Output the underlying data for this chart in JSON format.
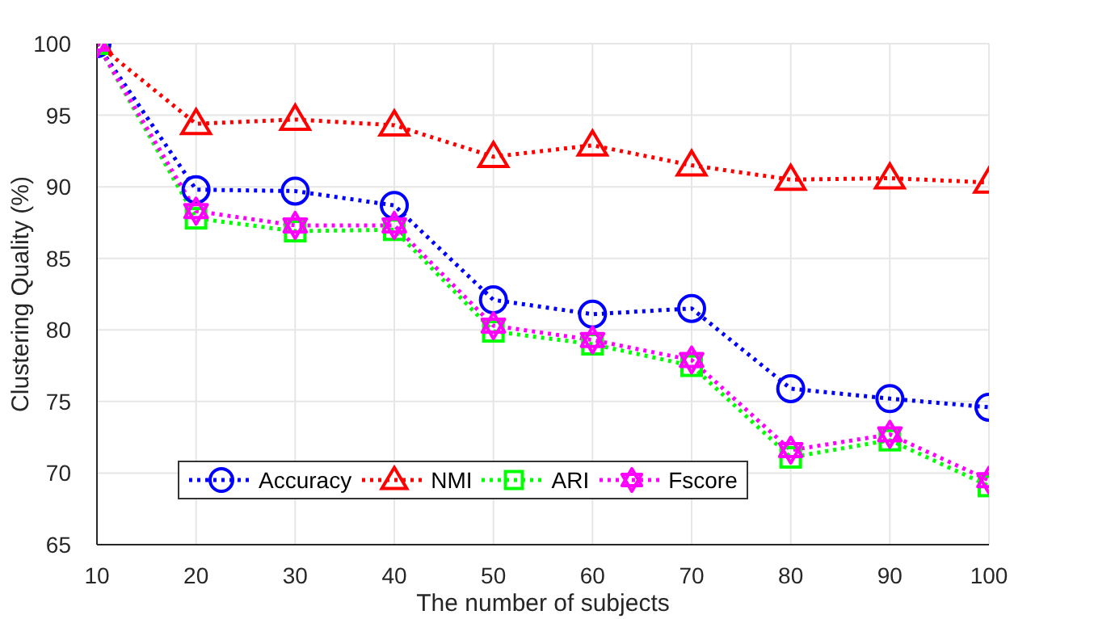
{
  "chart_data": {
    "type": "line",
    "xlabel": "The number of subjects",
    "ylabel": "Clustering Quality (%)",
    "x": [
      10,
      20,
      30,
      40,
      50,
      60,
      70,
      80,
      90,
      100
    ],
    "xlim": [
      10,
      100
    ],
    "xticks": [
      10,
      20,
      30,
      40,
      50,
      60,
      70,
      80,
      90,
      100
    ],
    "ylim": [
      65,
      100
    ],
    "yticks": [
      65,
      70,
      75,
      80,
      85,
      90,
      95,
      100
    ],
    "grid": true,
    "legend": "bottom left",
    "line_style": "dotted",
    "series": [
      {
        "name": "Accuracy",
        "color": "#0000ff",
        "marker": "circle",
        "values": [
          100,
          89.8,
          89.7,
          88.7,
          82.1,
          81.1,
          81.5,
          75.9,
          75.2,
          74.6
        ]
      },
      {
        "name": "NMI",
        "color": "#ff0000",
        "marker": "triangle",
        "values": [
          100,
          94.4,
          94.7,
          94.3,
          92.1,
          92.9,
          91.5,
          90.5,
          90.6,
          90.3
        ]
      },
      {
        "name": "ARI",
        "color": "#00ff00",
        "marker": "square",
        "values": [
          100,
          87.8,
          86.9,
          87.0,
          79.9,
          79.0,
          77.5,
          71.1,
          72.3,
          69.1
        ]
      },
      {
        "name": "Fscore",
        "color": "#ff00ff",
        "marker": "star",
        "values": [
          100,
          88.3,
          87.3,
          87.3,
          80.3,
          79.3,
          77.9,
          71.6,
          72.7,
          69.5
        ]
      }
    ]
  }
}
